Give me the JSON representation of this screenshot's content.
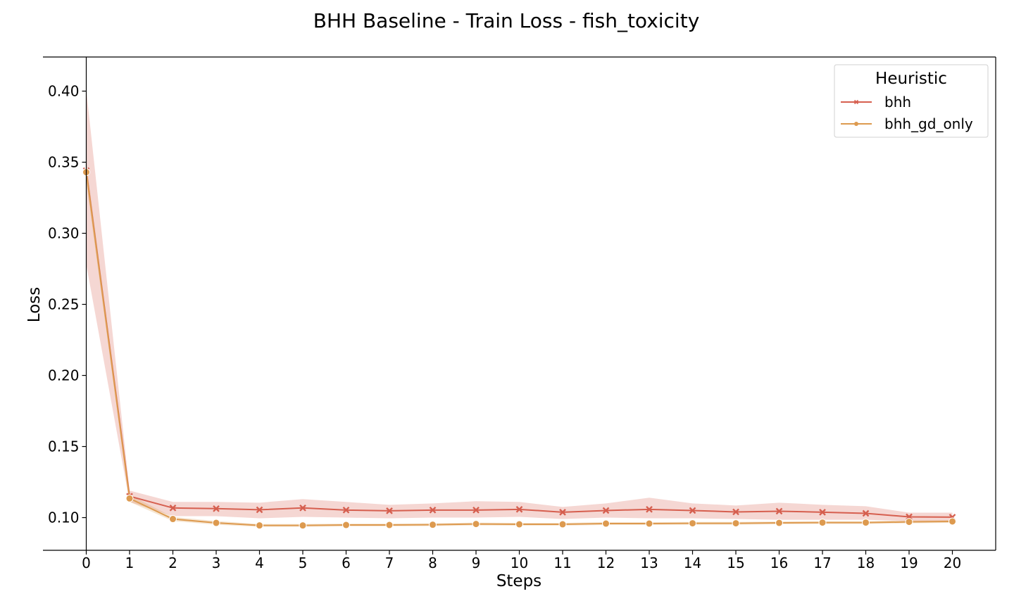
{
  "chart_data": {
    "type": "line",
    "title": "BHH Baseline - Train Loss - fish_toxicity",
    "xlabel": "Steps",
    "ylabel": "Loss",
    "x": [
      0,
      1,
      2,
      3,
      4,
      5,
      6,
      7,
      8,
      9,
      10,
      11,
      12,
      13,
      14,
      15,
      16,
      17,
      18,
      19,
      20
    ],
    "xlim": [
      -1,
      21
    ],
    "ylim": [
      0.077,
      0.424
    ],
    "yticks": [
      0.1,
      0.15,
      0.2,
      0.25,
      0.3,
      0.35,
      0.4
    ],
    "ytick_labels": [
      "0.10",
      "0.15",
      "0.20",
      "0.25",
      "0.30",
      "0.35",
      "0.40"
    ],
    "grid": false,
    "legend": {
      "title": "Heuristic",
      "position": "top-right"
    },
    "series": [
      {
        "name": "bhh",
        "color": "#d65f4f",
        "marker": "x",
        "values": [
          0.344,
          0.115,
          0.1068,
          0.1063,
          0.1055,
          0.1068,
          0.1053,
          0.1048,
          0.1053,
          0.1053,
          0.1058,
          0.1038,
          0.105,
          0.1058,
          0.105,
          0.104,
          0.1045,
          0.1038,
          0.103,
          0.1005,
          0.1003
        ],
        "lower": [
          0.278,
          0.111,
          0.101,
          0.101,
          0.0995,
          0.1005,
          0.1,
          0.0995,
          0.1,
          0.1,
          0.1005,
          0.099,
          0.1,
          0.0995,
          0.0995,
          0.099,
          0.0985,
          0.0985,
          0.0985,
          0.0975,
          0.097
        ],
        "upper": [
          0.401,
          0.119,
          0.111,
          0.111,
          0.1105,
          0.113,
          0.111,
          0.109,
          0.11,
          0.1115,
          0.111,
          0.1075,
          0.11,
          0.114,
          0.11,
          0.1085,
          0.1105,
          0.109,
          0.108,
          0.1035,
          0.1035
        ]
      },
      {
        "name": "bhh_gd_only",
        "color": "#dd9a4f",
        "marker": "o",
        "values": [
          0.343,
          0.1135,
          0.099,
          0.0963,
          0.0945,
          0.0945,
          0.0948,
          0.0948,
          0.095,
          0.0955,
          0.0953,
          0.0953,
          0.0958,
          0.0958,
          0.096,
          0.096,
          0.0963,
          0.0965,
          0.0965,
          0.097,
          0.0973
        ],
        "lower": [
          0.336,
          0.111,
          0.0975,
          0.095,
          0.0935,
          0.0935,
          0.0938,
          0.0938,
          0.094,
          0.0945,
          0.0943,
          0.0943,
          0.0948,
          0.0948,
          0.095,
          0.095,
          0.0953,
          0.0955,
          0.0955,
          0.096,
          0.0963
        ],
        "upper": [
          0.35,
          0.116,
          0.1005,
          0.0976,
          0.0955,
          0.0955,
          0.0958,
          0.0958,
          0.096,
          0.0965,
          0.0963,
          0.0963,
          0.0968,
          0.0968,
          0.097,
          0.097,
          0.0973,
          0.0975,
          0.0975,
          0.098,
          0.0983
        ]
      }
    ]
  }
}
